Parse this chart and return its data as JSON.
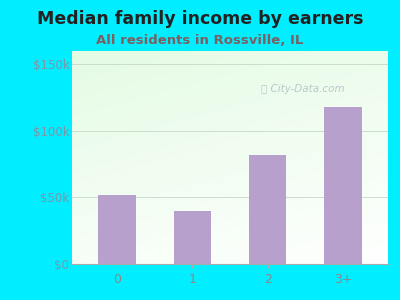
{
  "categories": [
    "0",
    "1",
    "2",
    "3+"
  ],
  "values": [
    52000,
    40000,
    82000,
    118000
  ],
  "bar_color": "#b8a0cc",
  "title": "Median family income by earners",
  "subtitle": "All residents in Rossville, IL",
  "title_fontsize": 12.5,
  "subtitle_fontsize": 9.5,
  "title_color": "#222222",
  "subtitle_color": "#7a6060",
  "ylabel_ticks": [
    0,
    50000,
    100000,
    150000
  ],
  "ylabel_labels": [
    "$0",
    "$50k",
    "$100k",
    "$150k"
  ],
  "ylim": [
    0,
    160000
  ],
  "outer_bg": "#00eeff",
  "plot_bg_top_left": "#c8e8c0",
  "plot_bg_bottom_right": "#f8ffff",
  "watermark": "City-Data.com",
  "watermark_color": "#b0bec5",
  "tick_color": "#888888",
  "ytick_color": "#7799aa",
  "axis_color": "#aaaaaa",
  "grid_color": "#ccddcc"
}
